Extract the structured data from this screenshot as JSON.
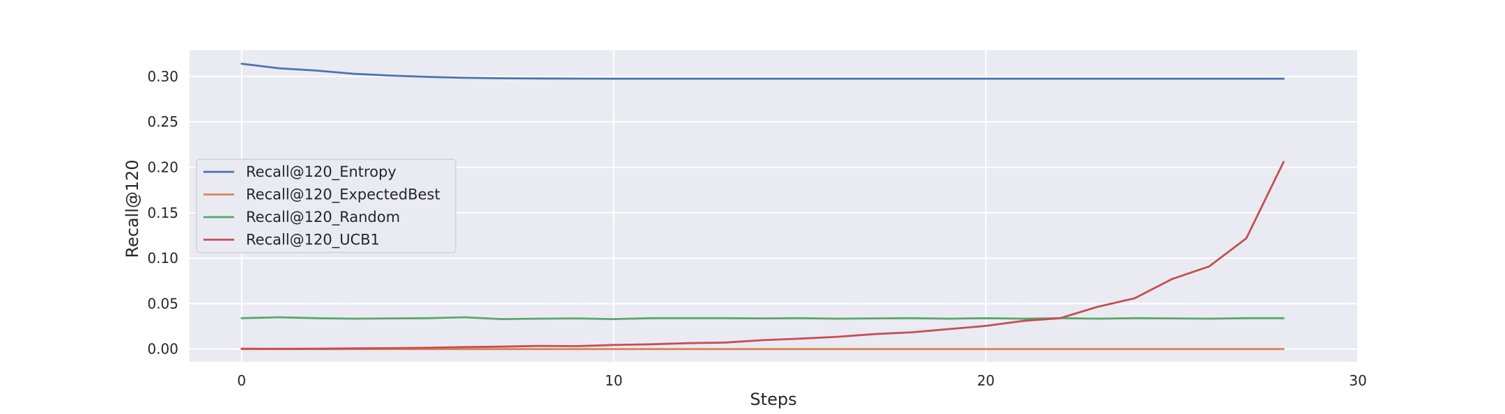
{
  "chart_data": {
    "type": "line",
    "xlabel": "Steps",
    "ylabel": "Recall@120",
    "xlim": [
      -1.4,
      30.0
    ],
    "ylim": [
      -0.014,
      0.329
    ],
    "xticks": [
      0,
      10,
      20,
      30
    ],
    "xtick_labels": [
      "0",
      "10",
      "20",
      "30"
    ],
    "yticks": [
      0.0,
      0.05,
      0.1,
      0.15,
      0.2,
      0.25,
      0.3
    ],
    "ytick_labels": [
      "0.00",
      "0.05",
      "0.10",
      "0.15",
      "0.20",
      "0.25",
      "0.30"
    ],
    "grid": true,
    "legend_position": "center-left",
    "x": [
      0,
      1,
      2,
      3,
      4,
      5,
      6,
      7,
      8,
      9,
      10,
      11,
      12,
      13,
      14,
      15,
      16,
      17,
      18,
      19,
      20,
      21,
      22,
      23,
      24,
      25,
      26,
      27,
      28
    ],
    "series": [
      {
        "name": "Recall@120_Entropy",
        "color": "#4c72b0",
        "values": [
          0.314,
          0.309,
          0.3065,
          0.303,
          0.301,
          0.2995,
          0.2985,
          0.298,
          0.2978,
          0.2976,
          0.2975,
          0.2975,
          0.2975,
          0.2975,
          0.2975,
          0.2975,
          0.2975,
          0.2975,
          0.2975,
          0.2975,
          0.2975,
          0.2975,
          0.2975,
          0.2975,
          0.2975,
          0.2975,
          0.2975,
          0.2975,
          0.2975
        ]
      },
      {
        "name": "Recall@120_ExpectedBest",
        "color": "#dd8452",
        "values": [
          0,
          0,
          0,
          0,
          0,
          0,
          0,
          0,
          0,
          0,
          0,
          0,
          0,
          0,
          0,
          0,
          0,
          0,
          0,
          0,
          0,
          0,
          0,
          0,
          0,
          0,
          0,
          0,
          0
        ]
      },
      {
        "name": "Recall@120_Random",
        "color": "#55a868",
        "values": [
          0.034,
          0.035,
          0.034,
          0.0335,
          0.0338,
          0.034,
          0.035,
          0.033,
          0.0335,
          0.0338,
          0.033,
          0.034,
          0.034,
          0.034,
          0.0338,
          0.034,
          0.0335,
          0.0338,
          0.034,
          0.0335,
          0.034,
          0.0335,
          0.034,
          0.0335,
          0.034,
          0.0338,
          0.0335,
          0.034,
          0.034
        ]
      },
      {
        "name": "Recall@120_UCB1",
        "color": "#c44e52",
        "values": [
          0.0005,
          0.0003,
          0.0004,
          0.0008,
          0.001,
          0.0015,
          0.0022,
          0.0027,
          0.0035,
          0.0032,
          0.0045,
          0.0053,
          0.0065,
          0.0072,
          0.0098,
          0.0115,
          0.0135,
          0.0165,
          0.0185,
          0.022,
          0.0255,
          0.031,
          0.034,
          0.0465,
          0.056,
          0.077,
          0.091,
          0.122,
          0.206
        ]
      }
    ]
  }
}
